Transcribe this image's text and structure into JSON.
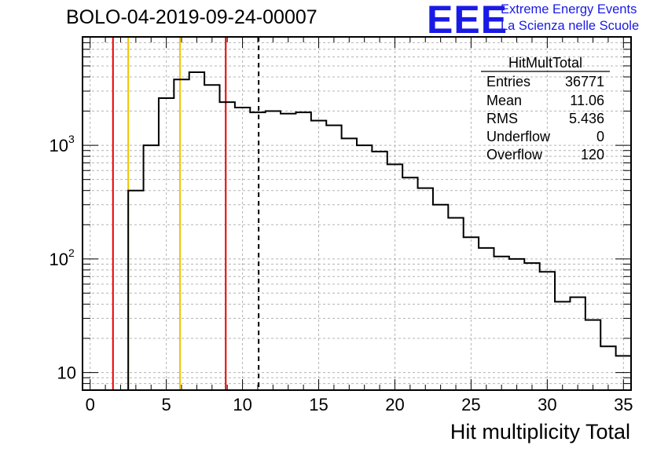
{
  "header": {
    "title": "BOLO-04-2019-09-24-00007",
    "logo_text": "EEE",
    "logo_line1": "Extreme Energy Events",
    "logo_line2": "La Scienza nelle Scuole"
  },
  "colors": {
    "histogram": "#000000",
    "red_lines": "#e60000",
    "yellow_lines": "#f2c200",
    "mean_line": "#000000",
    "logo": "#1a1ae6",
    "grid": "#b4b4b4"
  },
  "stats_box": {
    "title": "HitMultTotal",
    "rows": [
      {
        "label": "Entries",
        "value": "36771"
      },
      {
        "label": "Mean",
        "value": "11.06"
      },
      {
        "label": "RMS",
        "value": "5.436"
      },
      {
        "label": "Underflow",
        "value": "0"
      },
      {
        "label": "Overflow",
        "value": "120"
      }
    ]
  },
  "chart_data": {
    "type": "histogram",
    "xlabel": "Hit multiplicity Total",
    "ylabel": "",
    "xlim": [
      -0.5,
      35.5
    ],
    "ylim": [
      7,
      9000
    ],
    "log_y": true,
    "grid": true,
    "bin_width": 1,
    "bin_low_edges": [
      2.5,
      3.5,
      4.5,
      5.5,
      6.5,
      7.5,
      8.5,
      9.5,
      10.5,
      11.5,
      12.5,
      13.5,
      14.5,
      15.5,
      16.5,
      17.5,
      18.5,
      19.5,
      20.5,
      21.5,
      22.5,
      23.5,
      24.5,
      25.5,
      26.5,
      27.5,
      28.5,
      29.5,
      30.5,
      31.5,
      32.5,
      33.5,
      34.5
    ],
    "counts": [
      400,
      1000,
      2600,
      3800,
      4400,
      3400,
      2400,
      2150,
      1950,
      2000,
      1900,
      1950,
      1650,
      1500,
      1150,
      1000,
      880,
      680,
      520,
      420,
      300,
      230,
      155,
      125,
      105,
      100,
      92,
      77,
      42,
      46,
      29,
      17,
      14
    ],
    "x_ticks": [
      {
        "value": 0,
        "label": "0"
      },
      {
        "value": 5,
        "label": "5"
      },
      {
        "value": 10,
        "label": "10"
      },
      {
        "value": 15,
        "label": "15"
      },
      {
        "value": 20,
        "label": "20"
      },
      {
        "value": 25,
        "label": "25"
      },
      {
        "value": 30,
        "label": "30"
      },
      {
        "value": 35,
        "label": "35"
      }
    ],
    "y_ticks": [
      {
        "value": 10,
        "label": "10",
        "sup": ""
      },
      {
        "value": 100,
        "label": "10",
        "sup": "2"
      },
      {
        "value": 1000,
        "label": "10",
        "sup": "3"
      }
    ],
    "vertical_lines": [
      {
        "x": 1.5,
        "color": "#e60000",
        "style": "solid"
      },
      {
        "x": 2.5,
        "color": "#f2c200",
        "style": "solid"
      },
      {
        "x": 5.9,
        "color": "#f2c200",
        "style": "solid"
      },
      {
        "x": 8.9,
        "color": "#e60000",
        "style": "solid"
      },
      {
        "x": 11.06,
        "color": "#000000",
        "style": "dashed"
      }
    ]
  }
}
